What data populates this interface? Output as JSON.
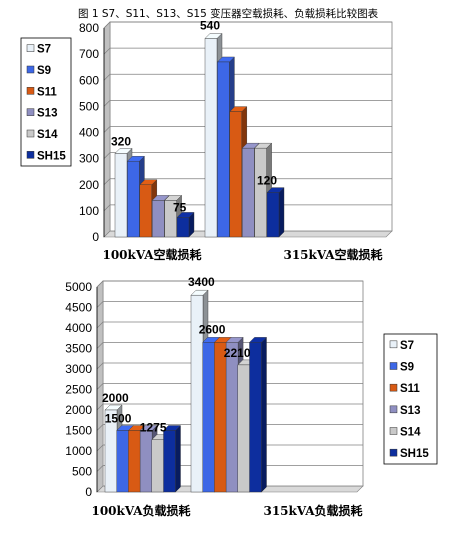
{
  "figure_title": "图 1    S7、S11、S13、S15 变压器空载损耗、负载损耗比较图表",
  "colors": {
    "S7": "#e9f1f8",
    "S9": "#3d67e6",
    "S11": "#d85a14",
    "S13": "#8f8fc1",
    "S14": "#c9c9c9",
    "SH15": "#0d2e9e"
  },
  "chart_data": [
    {
      "type": "bar",
      "title": "",
      "categories": [
        "100kVA空载损耗",
        "315kVA空载损耗"
      ],
      "series": [
        {
          "name": "S7",
          "values": [
            320,
            760
          ]
        },
        {
          "name": "S9",
          "values": [
            290,
            670
          ]
        },
        {
          "name": "S11",
          "values": [
            200,
            480
          ]
        },
        {
          "name": "S13",
          "values": [
            140,
            340
          ]
        },
        {
          "name": "S14",
          "values": [
            140,
            340
          ]
        },
        {
          "name": "SH15",
          "values": [
            75,
            170
          ]
        }
      ],
      "data_labels": [
        "320",
        "75",
        "540",
        "120",
        "760",
        "170"
      ],
      "y_ticks": [
        "0",
        "100",
        "200",
        "300",
        "400",
        "500",
        "600",
        "700",
        "800"
      ],
      "ylim": [
        0,
        800
      ],
      "grid": true,
      "legend_position": "left"
    },
    {
      "type": "bar",
      "title": "",
      "categories": [
        "100kVA负载损耗",
        "315kVA负载损耗"
      ],
      "series": [
        {
          "name": "S7",
          "values": [
            2000,
            4800
          ]
        },
        {
          "name": "S9",
          "values": [
            1500,
            3650
          ]
        },
        {
          "name": "S11",
          "values": [
            1500,
            3650
          ]
        },
        {
          "name": "S13",
          "values": [
            1500,
            3650
          ]
        },
        {
          "name": "S14",
          "values": [
            1275,
            3100
          ]
        },
        {
          "name": "SH15",
          "values": [
            1500,
            3650
          ]
        }
      ],
      "data_labels": [
        "2000",
        "1500",
        "1275",
        "3400",
        "2600",
        "2210",
        "4800",
        "3650",
        "3100"
      ],
      "y_ticks": [
        "0",
        "500",
        "1000",
        "1500",
        "2000",
        "2500",
        "3000",
        "3500",
        "4000",
        "4500",
        "5000"
      ],
      "ylim": [
        0,
        5000
      ],
      "grid": true,
      "legend_position": "right"
    }
  ]
}
